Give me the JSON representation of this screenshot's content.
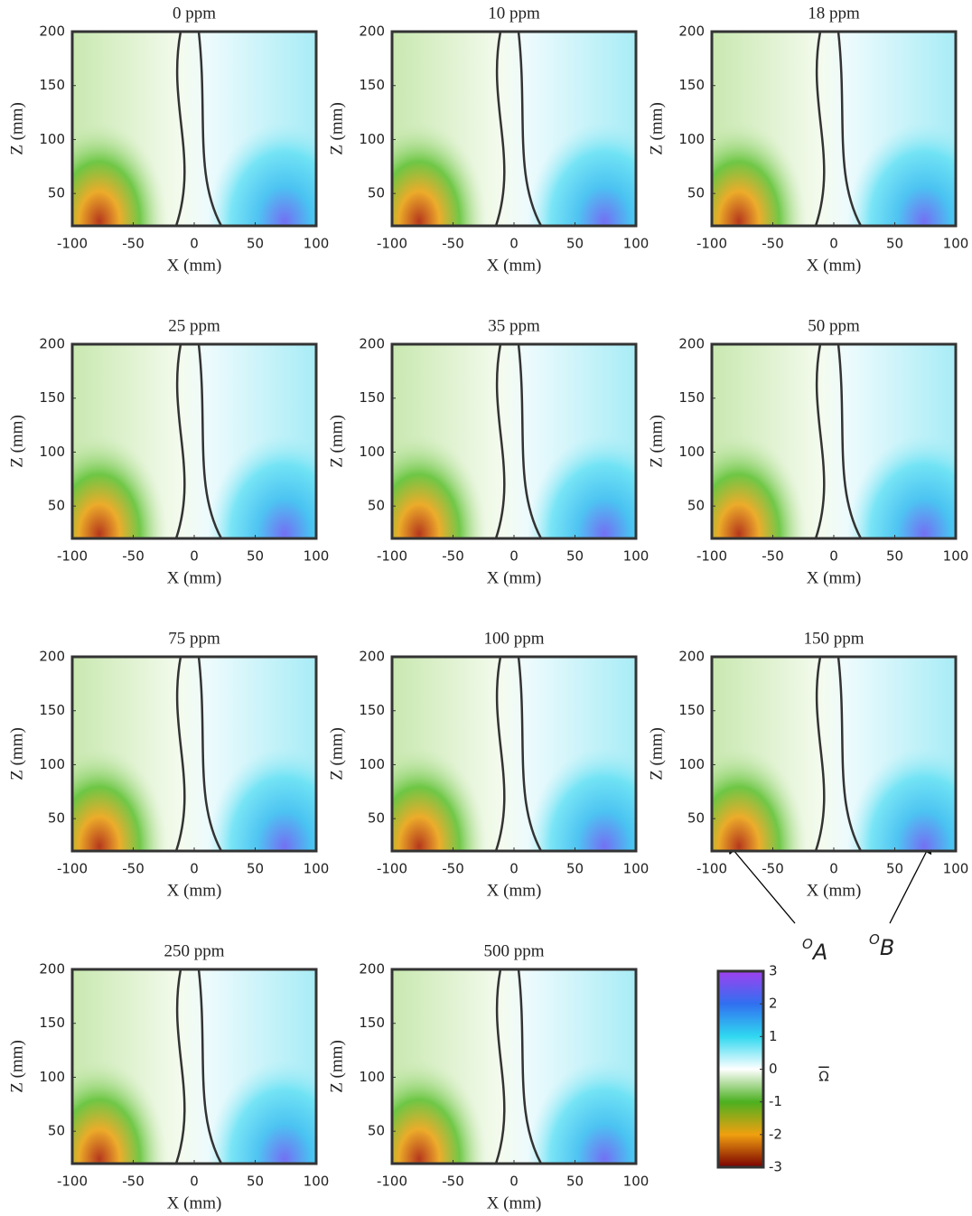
{
  "chart_data": [
    {
      "type": "heatmap",
      "title": "0 ppm",
      "xlabel": "X (mm)",
      "ylabel": "Z (mm)",
      "xlim": [
        -100,
        100
      ],
      "ylim": [
        20,
        200
      ],
      "xticks": [
        -100,
        -50,
        0,
        50,
        100
      ],
      "yticks": [
        50,
        100,
        150,
        200
      ]
    },
    {
      "type": "heatmap",
      "title": "10 ppm",
      "xlabel": "X (mm)",
      "ylabel": "Z (mm)",
      "xlim": [
        -100,
        100
      ],
      "ylim": [
        20,
        200
      ],
      "xticks": [
        -100,
        -50,
        0,
        50,
        100
      ],
      "yticks": [
        50,
        100,
        150,
        200
      ]
    },
    {
      "type": "heatmap",
      "title": "18 ppm",
      "xlabel": "X (mm)",
      "ylabel": "Z (mm)",
      "xlim": [
        -100,
        100
      ],
      "ylim": [
        20,
        200
      ],
      "xticks": [
        -100,
        -50,
        0,
        50,
        100
      ],
      "yticks": [
        50,
        100,
        150,
        200
      ]
    },
    {
      "type": "heatmap",
      "title": "25 ppm",
      "xlabel": "X (mm)",
      "ylabel": "Z (mm)",
      "xlim": [
        -100,
        100
      ],
      "ylim": [
        20,
        200
      ],
      "xticks": [
        -100,
        -50,
        0,
        50,
        100
      ],
      "yticks": [
        50,
        100,
        150,
        200
      ]
    },
    {
      "type": "heatmap",
      "title": "35 ppm",
      "xlabel": "X (mm)",
      "ylabel": "Z (mm)",
      "xlim": [
        -100,
        100
      ],
      "ylim": [
        20,
        200
      ],
      "xticks": [
        -100,
        -50,
        0,
        50,
        100
      ],
      "yticks": [
        50,
        100,
        150,
        200
      ]
    },
    {
      "type": "heatmap",
      "title": "50 ppm",
      "xlabel": "X (mm)",
      "ylabel": "Z (mm)",
      "xlim": [
        -100,
        100
      ],
      "ylim": [
        20,
        200
      ],
      "xticks": [
        -100,
        -50,
        0,
        50,
        100
      ],
      "yticks": [
        50,
        100,
        150,
        200
      ]
    },
    {
      "type": "heatmap",
      "title": "75 ppm",
      "xlabel": "X (mm)",
      "ylabel": "Z (mm)",
      "xlim": [
        -100,
        100
      ],
      "ylim": [
        20,
        200
      ],
      "xticks": [
        -100,
        -50,
        0,
        50,
        100
      ],
      "yticks": [
        50,
        100,
        150,
        200
      ]
    },
    {
      "type": "heatmap",
      "title": "100 ppm",
      "xlabel": "X (mm)",
      "ylabel": "Z (mm)",
      "xlim": [
        -100,
        100
      ],
      "ylim": [
        20,
        200
      ],
      "xticks": [
        -100,
        -50,
        0,
        50,
        100
      ],
      "yticks": [
        50,
        100,
        150,
        200
      ]
    },
    {
      "type": "heatmap",
      "title": "150 ppm",
      "xlabel": "X (mm)",
      "ylabel": "Z (mm)",
      "xlim": [
        -100,
        100
      ],
      "ylim": [
        20,
        200
      ],
      "xticks": [
        -100,
        -50,
        0,
        50,
        100
      ],
      "yticks": [
        50,
        100,
        150,
        200
      ],
      "annotations": [
        {
          "text": "O",
          "sub": "A"
        },
        {
          "text": "O",
          "sub": "B"
        }
      ]
    },
    {
      "type": "heatmap",
      "title": "250 ppm",
      "xlabel": "X (mm)",
      "ylabel": "Z (mm)",
      "xlim": [
        -100,
        100
      ],
      "ylim": [
        20,
        200
      ],
      "xticks": [
        -100,
        -50,
        0,
        50,
        100
      ],
      "yticks": [
        50,
        100,
        150,
        200
      ]
    },
    {
      "type": "heatmap",
      "title": "500 ppm",
      "xlabel": "X (mm)",
      "ylabel": "Z (mm)",
      "xlim": [
        -100,
        100
      ],
      "ylim": [
        20,
        200
      ],
      "xticks": [
        -100,
        -50,
        0,
        50,
        100
      ],
      "yticks": [
        50,
        100,
        150,
        200
      ]
    },
    {
      "type": "colorbar",
      "label": "Ω",
      "clim": [
        -3,
        3
      ],
      "ticks": [
        -3,
        -2,
        -1,
        0,
        1,
        2,
        3
      ],
      "colors": [
        "#7a0000",
        "#f0a010",
        "#4cb020",
        "#ffffff",
        "#30d8f0",
        "#3070f0",
        "#a040f0"
      ]
    }
  ]
}
